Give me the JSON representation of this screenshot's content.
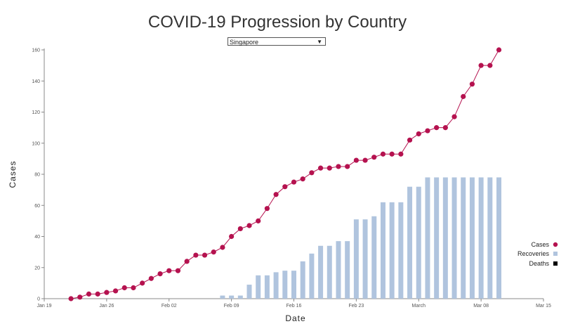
{
  "title": "COVID-19 Progression by Country",
  "country_select": {
    "selected": "Singapore"
  },
  "colors": {
    "cases": "#b5124f",
    "recoveries": "#b0c4de",
    "deaths": "#000000",
    "axis": "#888888"
  },
  "chart_data": {
    "type": "line",
    "title": "COVID-19 Progression by Country",
    "xlabel": "Date",
    "ylabel": "Cases",
    "x_ticks": [
      "Jan 19",
      "Jan 26",
      "Feb 02",
      "Feb 09",
      "Feb 16",
      "Feb 23",
      "March",
      "Mar 08",
      "Mar 15"
    ],
    "y_ticks": [
      0,
      20,
      40,
      60,
      80,
      100,
      120,
      140,
      160
    ],
    "xlim": [
      "2020-01-19",
      "2020-03-15"
    ],
    "ylim": [
      0,
      160
    ],
    "grid": false,
    "legend_position": "bottom-right",
    "legend": [
      "Cases",
      "Recoveries",
      "Deaths"
    ],
    "dates": [
      "2020-01-22",
      "2020-01-23",
      "2020-01-24",
      "2020-01-25",
      "2020-01-26",
      "2020-01-27",
      "2020-01-28",
      "2020-01-29",
      "2020-01-30",
      "2020-01-31",
      "2020-02-01",
      "2020-02-02",
      "2020-02-03",
      "2020-02-04",
      "2020-02-05",
      "2020-02-06",
      "2020-02-07",
      "2020-02-08",
      "2020-02-09",
      "2020-02-10",
      "2020-02-11",
      "2020-02-12",
      "2020-02-13",
      "2020-02-14",
      "2020-02-15",
      "2020-02-16",
      "2020-02-17",
      "2020-02-18",
      "2020-02-19",
      "2020-02-20",
      "2020-02-21",
      "2020-02-22",
      "2020-02-23",
      "2020-02-24",
      "2020-02-25",
      "2020-02-26",
      "2020-02-27",
      "2020-02-28",
      "2020-02-29",
      "2020-03-01",
      "2020-03-02",
      "2020-03-03",
      "2020-03-04",
      "2020-03-05",
      "2020-03-06",
      "2020-03-07",
      "2020-03-08",
      "2020-03-09",
      "2020-03-10"
    ],
    "series": [
      {
        "name": "Cases",
        "type": "line",
        "values": [
          0,
          1,
          3,
          3,
          4,
          5,
          7,
          7,
          10,
          13,
          16,
          18,
          18,
          24,
          28,
          28,
          30,
          33,
          40,
          45,
          47,
          50,
          58,
          67,
          72,
          75,
          77,
          81,
          84,
          84,
          85,
          85,
          89,
          89,
          91,
          93,
          93,
          93,
          102,
          106,
          108,
          110,
          110,
          117,
          130,
          138,
          150,
          150,
          160
        ]
      },
      {
        "name": "Recoveries",
        "type": "bar",
        "values": [
          0,
          0,
          0,
          0,
          0,
          0,
          0,
          0,
          0,
          0,
          0,
          0,
          0,
          0,
          0,
          0,
          0,
          2,
          2,
          2,
          9,
          15,
          15,
          17,
          18,
          18,
          24,
          29,
          34,
          34,
          37,
          37,
          51,
          51,
          53,
          62,
          62,
          62,
          72,
          72,
          78,
          78,
          78,
          78,
          78,
          78,
          78,
          78,
          78
        ]
      },
      {
        "name": "Deaths",
        "type": "bar",
        "values": [
          0,
          0,
          0,
          0,
          0,
          0,
          0,
          0,
          0,
          0,
          0,
          0,
          0,
          0,
          0,
          0,
          0,
          0,
          0,
          0,
          0,
          0,
          0,
          0,
          0,
          0,
          0,
          0,
          0,
          0,
          0,
          0,
          0,
          0,
          0,
          0,
          0,
          0,
          0,
          0,
          0,
          0,
          0,
          0,
          0,
          0,
          0,
          0,
          0
        ]
      }
    ]
  }
}
